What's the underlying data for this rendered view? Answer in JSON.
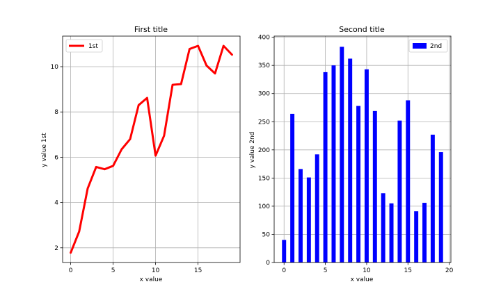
{
  "chart_data": [
    {
      "type": "line",
      "title": "First title",
      "xlabel": "x value",
      "ylabel": "y value 1st",
      "x": [
        0,
        1,
        2,
        3,
        4,
        5,
        6,
        7,
        8,
        9,
        10,
        11,
        12,
        13,
        14,
        15,
        16,
        17,
        18,
        19
      ],
      "series": [
        {
          "name": "1st",
          "color": "#ff0000",
          "values": [
            1.78,
            2.72,
            4.62,
            5.57,
            5.47,
            5.62,
            6.35,
            6.8,
            8.3,
            8.62,
            6.07,
            6.95,
            9.2,
            9.23,
            10.78,
            10.92,
            10.05,
            9.7,
            10.92,
            10.53
          ]
        }
      ],
      "xlim": [
        -0.95,
        19.95
      ],
      "ylim": [
        1.35,
        11.35
      ],
      "xticks": [
        0,
        5,
        10,
        15
      ],
      "yticks": [
        2,
        4,
        6,
        8,
        10
      ],
      "grid": true,
      "legend": "upper left"
    },
    {
      "type": "bar",
      "title": "Second title",
      "xlabel": "x value",
      "ylabel": "y value 2nd",
      "x": [
        0,
        1,
        2,
        3,
        4,
        5,
        6,
        7,
        8,
        9,
        10,
        11,
        12,
        13,
        14,
        15,
        16,
        17,
        18,
        19
      ],
      "series": [
        {
          "name": "2nd",
          "color": "#0000ff",
          "values": [
            40,
            264,
            166,
            151,
            192,
            338,
            350,
            383,
            362,
            278,
            343,
            269,
            123,
            105,
            252,
            288,
            91,
            106,
            227,
            196
          ]
        }
      ],
      "bar_width": 0.5,
      "xlim": [
        -1.2,
        20.2
      ],
      "ylim": [
        0,
        402
      ],
      "xticks": [
        0,
        5,
        10,
        15,
        20
      ],
      "yticks": [
        0,
        50,
        100,
        150,
        200,
        250,
        300,
        350,
        400
      ],
      "grid": true,
      "legend": "upper right"
    }
  ]
}
